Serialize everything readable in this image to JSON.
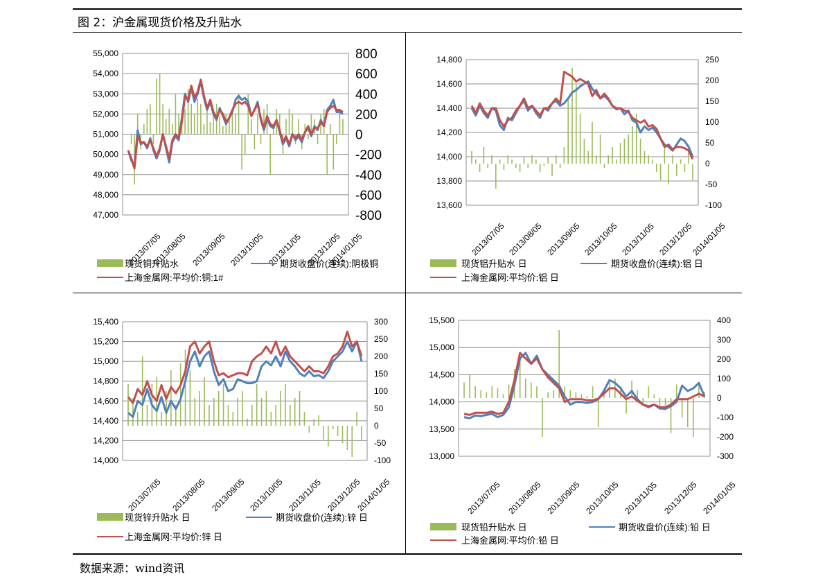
{
  "page": {
    "title": "图 2：沪金属现货价格及升贴水",
    "source": "数据来源：wind资讯"
  },
  "colors": {
    "bar": "#9BBB59",
    "blue": "#4F81BD",
    "red": "#C0504D"
  },
  "x_labels": [
    "2013/07/05",
    "2013/08/05",
    "2013/09/05",
    "2013/10/05",
    "2013/11/05",
    "2013/12/05",
    "2014/01/05"
  ],
  "chart_data": [
    {
      "type": "line",
      "id": "copper",
      "yleft": {
        "min": 47000,
        "max": 55000,
        "step": 1000,
        "labels": [
          "47,000",
          "48,000",
          "49,000",
          "50,000",
          "51,000",
          "52,000",
          "53,000",
          "54,000",
          "55,000"
        ]
      },
      "yright": {
        "min": -800,
        "max": 800,
        "step": 200,
        "labels": [
          "-800",
          "-600",
          "-400",
          "-200",
          "0",
          "200",
          "400",
          "600",
          "800"
        ]
      },
      "x_labels": [
        "2013/07/05",
        "2013/08/05",
        "2013/09/05",
        "2013/10/05",
        "2013/11/05",
        "2013/12/05",
        "2014/01/05"
      ],
      "legend": [
        "现货铜升贴水",
        "期货收盘价(连续):阴极铜",
        "上海金属网:平均价:铜:1#"
      ],
      "blue": [
        50200,
        49700,
        49400,
        51200,
        50500,
        50600,
        50300,
        50800,
        50200,
        49800,
        50200,
        51000,
        50300,
        49600,
        50600,
        50900,
        50700,
        51800,
        53000,
        52600,
        53300,
        52600,
        53000,
        53600,
        52800,
        52200,
        52600,
        52000,
        51700,
        52300,
        51900,
        51500,
        51800,
        52100,
        52700,
        52900,
        52700,
        52800,
        52600,
        51900,
        52200,
        52600,
        51700,
        51200,
        51800,
        51400,
        51300,
        51700,
        51100,
        50500,
        50800,
        50400,
        51000,
        50700,
        50900,
        50600,
        51100,
        51300,
        50900,
        51400,
        51200,
        51700,
        51400,
        52200,
        52400,
        52700,
        52100,
        52100,
        52000
      ],
      "red": [
        50200,
        49800,
        49300,
        50900,
        50600,
        50600,
        50400,
        50700,
        50300,
        49900,
        50300,
        51000,
        50400,
        49800,
        50700,
        51000,
        50800,
        51600,
        52900,
        52700,
        53400,
        52800,
        53100,
        53700,
        52900,
        52300,
        52700,
        52100,
        51800,
        52200,
        52000,
        51600,
        51800,
        52200,
        52500,
        52600,
        52500,
        52600,
        52400,
        51900,
        52200,
        52500,
        51800,
        51300,
        51900,
        51500,
        51400,
        51700,
        51200,
        50600,
        50900,
        50500,
        51000,
        50800,
        51000,
        50700,
        51100,
        51400,
        51000,
        51300,
        51300,
        51600,
        51400,
        52100,
        52300,
        52400,
        52200,
        52200,
        52100
      ],
      "bars": [
        0,
        -100,
        -500,
        200,
        -150,
        100,
        250,
        300,
        -100,
        550,
        600,
        300,
        150,
        250,
        100,
        400,
        200,
        180,
        250,
        450,
        300,
        200,
        350,
        300,
        100,
        250,
        120,
        250,
        300,
        180,
        80,
        200,
        150,
        250,
        200,
        400,
        -350,
        -200,
        400,
        150,
        -150,
        200,
        -100,
        250,
        300,
        -400,
        100,
        250,
        200,
        -200,
        150,
        250,
        200,
        -100,
        150,
        -150,
        100,
        -50,
        200,
        150,
        -100,
        200,
        250,
        -400,
        100,
        -350,
        -100,
        200,
        150
      ]
    },
    {
      "type": "line",
      "id": "aluminum",
      "yleft": {
        "min": 13600,
        "max": 14800,
        "step": 200,
        "labels": [
          "13,600",
          "13,800",
          "14,000",
          "14,200",
          "14,400",
          "14,600",
          "14,800"
        ]
      },
      "yright": {
        "min": -100,
        "max": 250,
        "step": 50,
        "labels": [
          "-100",
          "-50",
          "0",
          "50",
          "100",
          "150",
          "200",
          "250"
        ]
      },
      "x_labels": [
        "2013/07/05",
        "2013/08/05",
        "2013/09/05",
        "2013/10/05",
        "2013/11/05",
        "2013/12/05",
        "2014/01/05"
      ],
      "legend": [
        "现货铝升贴水 日",
        "期货收盘价(连续):铝 日",
        "上海金属网:平均价:铝 日"
      ],
      "blue": [
        14400,
        14340,
        14420,
        14360,
        14320,
        14400,
        14380,
        14260,
        14220,
        14320,
        14300,
        14360,
        14420,
        14460,
        14380,
        14420,
        14360,
        14320,
        14400,
        14380,
        14440,
        14460,
        14420,
        14440,
        14480,
        14530,
        14550,
        14580,
        14600,
        14620,
        14560,
        14520,
        14480,
        14500,
        14470,
        14420,
        14390,
        14400,
        14350,
        14380,
        14300,
        14280,
        14200,
        14250,
        14220,
        14240,
        14200,
        14150,
        14100,
        14080,
        14050,
        14100,
        14150,
        14130,
        14080,
        14000
      ],
      "red": [
        14420,
        14360,
        14440,
        14380,
        14340,
        14400,
        14400,
        14300,
        14250,
        14300,
        14320,
        14380,
        14420,
        14480,
        14400,
        14420,
        14380,
        14340,
        14400,
        14400,
        14440,
        14480,
        14440,
        14700,
        14680,
        14660,
        14620,
        14640,
        14620,
        14600,
        14500,
        14550,
        14480,
        14520,
        14480,
        14420,
        14400,
        14400,
        14380,
        14370,
        14320,
        14300,
        14280,
        14300,
        14250,
        14260,
        14230,
        14150,
        14080,
        14100,
        14060,
        14080,
        14080,
        14070,
        14050,
        13980
      ],
      "bars": [
        30,
        10,
        -20,
        40,
        -10,
        20,
        -60,
        10,
        -15,
        20,
        10,
        -10,
        -20,
        15,
        -10,
        20,
        10,
        -20,
        -5,
        15,
        -30,
        20,
        -10,
        40,
        160,
        230,
        190,
        120,
        60,
        30,
        100,
        20,
        70,
        -10,
        20,
        40,
        10,
        50,
        60,
        70,
        90,
        120,
        60,
        30,
        20,
        10,
        -20,
        -40,
        40,
        -50,
        20,
        -30,
        10,
        -20,
        30,
        -40
      ]
    },
    {
      "type": "line",
      "id": "zinc",
      "yleft": {
        "min": 14000,
        "max": 15400,
        "step": 200,
        "labels": [
          "14,000",
          "14,200",
          "14,400",
          "14,600",
          "14,800",
          "15,000",
          "15,200",
          "15,400"
        ]
      },
      "yright": {
        "min": -100,
        "max": 300,
        "step": 50,
        "labels": [
          "-100",
          "-50",
          "0",
          "50",
          "100",
          "150",
          "200",
          "250",
          "300"
        ]
      },
      "x_labels": [
        "2013/07/05",
        "2013/08/05",
        "2013/09/05",
        "2013/10/05",
        "2013/11/05",
        "2013/12/05",
        "2014/01/05"
      ],
      "legend": [
        "现货锌升贴水 日",
        "期货收盘价(连续):锌 日",
        "上海金属网:平均价:锌 日"
      ],
      "blue": [
        14480,
        14440,
        14600,
        14560,
        14720,
        14560,
        14500,
        14640,
        14480,
        14600,
        14520,
        14620,
        14800,
        15000,
        15100,
        14950,
        15050,
        15100,
        14900,
        14760,
        14820,
        14700,
        14720,
        14820,
        14800,
        14780,
        14780,
        14800,
        14950,
        15000,
        14960,
        15050,
        14950,
        15100,
        15000,
        14950,
        14880,
        14850,
        14900,
        14850,
        14860,
        14830,
        14900,
        15000,
        15050,
        15100,
        15200,
        15100,
        15200,
        15000
      ],
      "red": [
        14640,
        14580,
        14720,
        14660,
        14800,
        14660,
        14600,
        14760,
        14620,
        14740,
        14680,
        14760,
        14900,
        15150,
        15200,
        15080,
        15150,
        15200,
        15000,
        14860,
        14880,
        14840,
        14860,
        14880,
        14880,
        14860,
        15000,
        15050,
        15080,
        15150,
        15080,
        15200,
        15060,
        15150,
        15050,
        15000,
        14950,
        14900,
        14950,
        14900,
        14900,
        14880,
        14950,
        15050,
        15080,
        15150,
        15300,
        15150,
        15200,
        15050
      ],
      "bars": [
        120,
        80,
        40,
        200,
        60,
        120,
        140,
        40,
        100,
        160,
        60,
        180,
        220,
        160,
        80,
        100,
        140,
        60,
        80,
        100,
        120,
        60,
        40,
        80,
        100,
        20,
        60,
        120,
        80,
        100,
        40,
        60,
        100,
        120,
        60,
        80,
        100,
        40,
        -20,
        20,
        30,
        -40,
        -60,
        -10,
        -30,
        -50,
        -70,
        -90,
        40,
        -40
      ]
    },
    {
      "type": "line",
      "id": "lead",
      "yleft": {
        "min": 13000,
        "max": 15500,
        "step": 500,
        "labels": [
          "13,000",
          "13,500",
          "14,000",
          "14,500",
          "15,000",
          "15,500"
        ]
      },
      "yright": {
        "min": -300,
        "max": 400,
        "step": 100,
        "labels": [
          "-300",
          "-200",
          "-100",
          "0",
          "100",
          "200",
          "300",
          "400"
        ]
      },
      "x_labels": [
        "2013/07/05",
        "2013/08/05",
        "2013/09/05",
        "2013/10/05",
        "2013/11/05",
        "2013/12/05",
        "2014/01/05"
      ],
      "legend": [
        "现货铅升贴水 日",
        "期货收盘价(连续):铅 日",
        "上海金属网:平均价:铅 日"
      ],
      "blue": [
        13720,
        13700,
        13750,
        13740,
        13760,
        13780,
        13720,
        13760,
        13900,
        14300,
        14800,
        14900,
        14700,
        14850,
        14600,
        14500,
        14400,
        14300,
        14100,
        13950,
        14000,
        14000,
        13980,
        14000,
        14050,
        14200,
        14400,
        14350,
        14250,
        14100,
        14200,
        14050,
        13950,
        13900,
        13950,
        13880,
        13870,
        13920,
        14000,
        14300,
        14200,
        14250,
        14350,
        14100
      ],
      "red": [
        13780,
        13760,
        13800,
        13800,
        13800,
        13820,
        13780,
        13800,
        14000,
        14400,
        14900,
        14800,
        14700,
        14800,
        14600,
        14450,
        14350,
        14250,
        14000,
        14050,
        14050,
        14050,
        14030,
        14030,
        14060,
        14150,
        14250,
        14250,
        14150,
        14050,
        14100,
        14020,
        13950,
        13920,
        13950,
        13900,
        13900,
        13950,
        14050,
        14050,
        14050,
        14100,
        14150,
        14100
      ],
      "bars": [
        80,
        120,
        60,
        40,
        30,
        60,
        50,
        20,
        70,
        150,
        220,
        100,
        80,
        60,
        -200,
        30,
        40,
        350,
        60,
        40,
        30,
        20,
        10,
        60,
        -150,
        40,
        80,
        100,
        60,
        -80,
        90,
        40,
        -30,
        60,
        20,
        -60,
        -40,
        -180,
        70,
        -100,
        -150,
        -200,
        80,
        30
      ]
    }
  ]
}
